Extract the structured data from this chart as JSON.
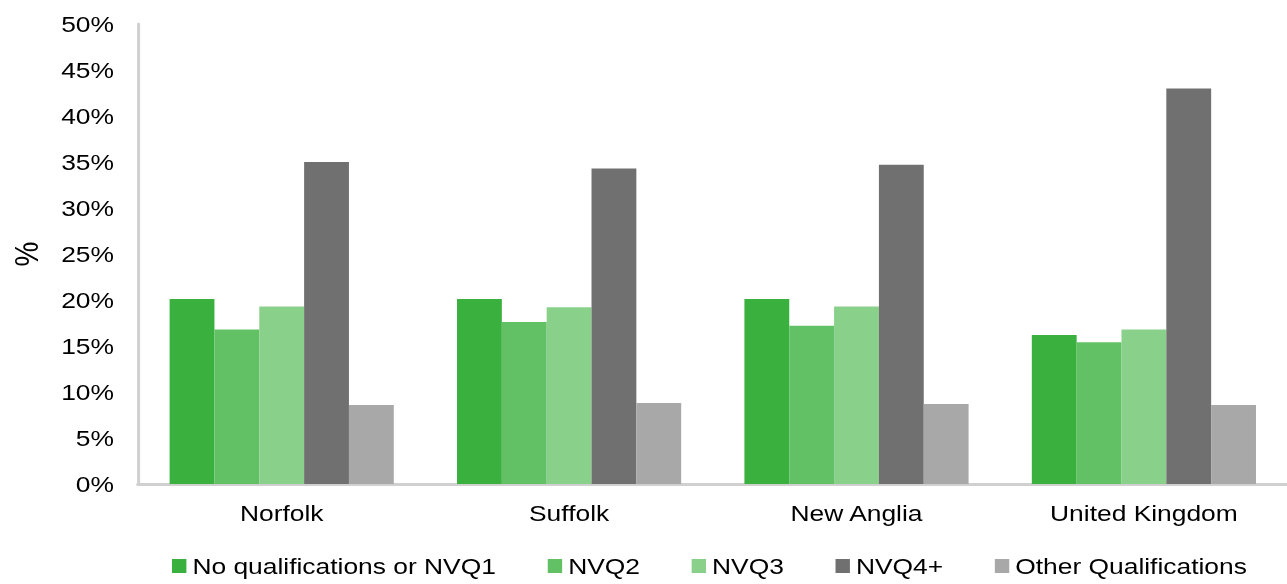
{
  "chart_data": {
    "type": "bar",
    "ylabel": "%",
    "categories": [
      "Norfolk",
      "Suffolk",
      "New Anglia",
      "United Kingdom"
    ],
    "series": [
      {
        "name": "No qualifications or NVQ1",
        "color": "#3ab03e",
        "values": [
          20.1,
          20.1,
          20.1,
          16.2
        ]
      },
      {
        "name": "NVQ2",
        "color": "#62c065",
        "values": [
          16.8,
          17.6,
          17.2,
          15.4
        ]
      },
      {
        "name": "NVQ3",
        "color": "#89d08a",
        "values": [
          19.3,
          19.2,
          19.3,
          16.8
        ]
      },
      {
        "name": "NVQ4+",
        "color": "#707070",
        "values": [
          35.0,
          34.3,
          34.7,
          43.0
        ]
      },
      {
        "name": "Other Qualifications",
        "color": "#a8a8a8",
        "values": [
          8.6,
          8.8,
          8.7,
          8.6
        ]
      }
    ],
    "ylim": [
      0,
      50
    ],
    "yticks": [
      {
        "value": 0,
        "label": "0%"
      },
      {
        "value": 5,
        "label": "5%"
      },
      {
        "value": 10,
        "label": "10%"
      },
      {
        "value": 15,
        "label": "15%"
      },
      {
        "value": 20,
        "label": "20%"
      },
      {
        "value": 25,
        "label": "25%"
      },
      {
        "value": 30,
        "label": "30%"
      },
      {
        "value": 35,
        "label": "35%"
      },
      {
        "value": 40,
        "label": "40%"
      },
      {
        "value": 45,
        "label": "45%"
      },
      {
        "value": 50,
        "label": "50%"
      }
    ],
    "grid": false,
    "legend": "bottom"
  }
}
